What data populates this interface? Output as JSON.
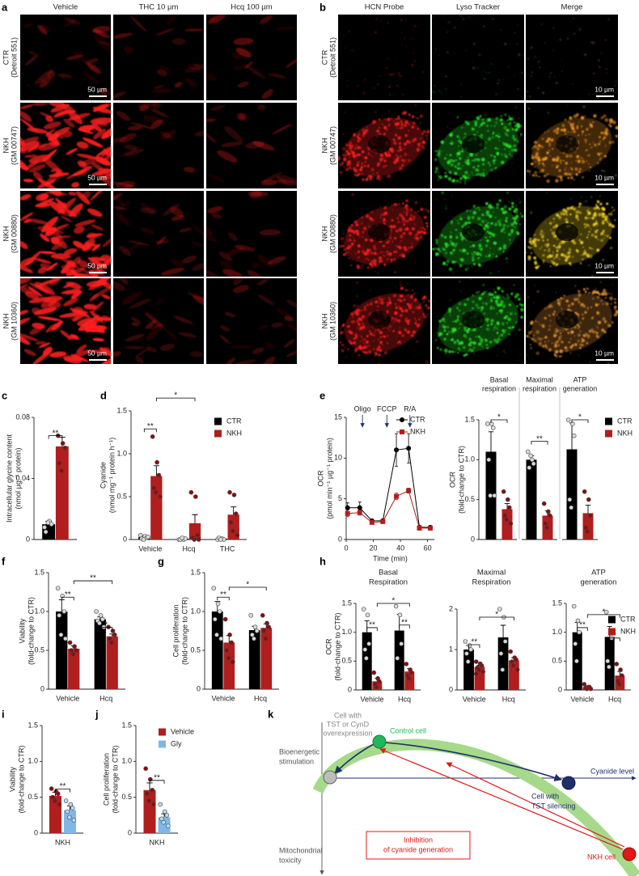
{
  "image_panels": {
    "a": {
      "panel": "a",
      "columns": [
        "Vehicle",
        "THC 10 µm",
        "Hcq 100 µm"
      ],
      "rows": [
        [
          "CTR",
          "(Detroit 551)"
        ],
        [
          "NKH",
          "(GM 00747)"
        ],
        [
          "NKH",
          "(GM 00880)"
        ],
        [
          "NKH",
          "(GM 10360)"
        ]
      ],
      "scale_bar": "50 µm"
    },
    "b": {
      "panel": "b",
      "columns": [
        "HCN Probe",
        "Lyso Tracker",
        "Merge"
      ],
      "rows": [
        [
          "CTR",
          "(Detroit 551)"
        ],
        [
          "NKH",
          "(GM 00747)"
        ],
        [
          "NKH",
          "(GM 00880)"
        ],
        [
          "NKH",
          "(GM 10360)"
        ]
      ],
      "scale_bar": "10 µm"
    }
  },
  "chart_data": [
    {
      "type": "bar",
      "panel": "c",
      "ylabel": [
        "Intracellular glycine content",
        "(nmol µg⁻¹ protein)"
      ],
      "categories": [
        null
      ],
      "ylim": [
        0,
        0.08
      ],
      "yticks": [
        0,
        0.04,
        0.08
      ],
      "series": [
        {
          "color": "#000000",
          "point_color": "#d9d9d9",
          "values": [
            0.01
          ],
          "errors": [
            0.002
          ],
          "points": [
            [
              0.008,
              0.012,
              0.01,
              0.005,
              0.011
            ]
          ]
        },
        {
          "color": "#b01e1e",
          "point_color": "#8b0d0d",
          "values": [
            0.061
          ],
          "errors": [
            0.006
          ],
          "points": [
            [
              0.068,
              0.063,
              0.06,
              0.05,
              0.045
            ]
          ]
        }
      ],
      "annotations": [
        "**"
      ]
    },
    {
      "type": "bar",
      "panel": "d",
      "ylabel": [
        "Cyanide",
        "(nmol mg⁻¹ protein h⁻¹)"
      ],
      "categories": [
        "Vehicle",
        "Hcq",
        "THC"
      ],
      "ylim": [
        0,
        1.5
      ],
      "yticks": [
        0,
        0.5,
        {
          "value": 1,
          "label": "1.0"
        },
        1.5
      ],
      "legend": "upper right",
      "series": [
        {
          "name": "CTR",
          "color": "#000000",
          "point_color": "#d9d9d9",
          "values": [
            0.03,
            0.01,
            0.01
          ],
          "errors": [
            0.01,
            0.01,
            0.01
          ],
          "points": [
            [
              0.05,
              0.04,
              0.02,
              0.01,
              0,
              0.03
            ],
            [
              0,
              0,
              0.01,
              0,
              0.02
            ],
            [
              0,
              0.01,
              0,
              0.02,
              0
            ]
          ]
        },
        {
          "name": "NKH",
          "color": "#b01e1e",
          "point_color": "#8b0d0d",
          "values": [
            0.74,
            0.19,
            0.29
          ],
          "errors": [
            0.12,
            0.1,
            0.09
          ],
          "points": [
            [
              1.2,
              0.9,
              0.75,
              0.6,
              0.55,
              0.5
            ],
            [
              0.55,
              0.5,
              0.05,
              0.02,
              0,
              0
            ],
            [
              0.55,
              0.52,
              0.3,
              0.2,
              0.1,
              0.05
            ]
          ]
        }
      ],
      "annotations": [
        "**",
        "*"
      ]
    },
    {
      "type": "line",
      "panel": "e",
      "ylabel": [
        "OCR",
        "(pmol min⁻¹ µg⁻¹ protein)"
      ],
      "xlabel": "Time (min)",
      "x": [
        1,
        10,
        19,
        27,
        37,
        46,
        54,
        62
      ],
      "xlim": [
        0,
        65
      ],
      "xticks": [
        0,
        20,
        40,
        60
      ],
      "ylim": [
        0,
        15
      ],
      "yticks": [
        0,
        5,
        10,
        15
      ],
      "legend": "upper right",
      "series": [
        {
          "name": "CTR",
          "color": "#000000",
          "marker": "circle",
          "values": [
            3.9,
            3.9,
            2.3,
            2.3,
            11,
            11.2,
            1.5,
            1.5
          ],
          "errors": [
            0.6,
            0.7,
            0.2,
            0.2,
            2,
            1.8,
            0.2,
            0.2
          ]
        },
        {
          "name": "NKH",
          "color": "#b01e1e",
          "marker": "square",
          "values": [
            3.2,
            3.3,
            2.1,
            2.2,
            5.3,
            6,
            1.4,
            1.4
          ],
          "errors": [
            0.4,
            0.3,
            0.2,
            0.2,
            0.4,
            0.3,
            0.1,
            0.1
          ]
        }
      ],
      "annotations": [
        {
          "text": "Oligo",
          "x": 12
        },
        {
          "text": "FCCP",
          "x": 30
        },
        {
          "text": "R/A",
          "x": 47
        }
      ]
    },
    {
      "type": "bar",
      "ylabel": [
        "OCR",
        "(fold-change to CTR)"
      ],
      "categories": [
        [
          "Basal",
          "respiration"
        ],
        [
          "Maximal",
          "respiration"
        ],
        [
          "ATP",
          "generation"
        ]
      ],
      "ylim": [
        0,
        1.5
      ],
      "yticks": [
        0,
        0.5,
        {
          "value": 1,
          "label": "1.0"
        },
        1.5
      ],
      "legend": "upper right",
      "series": [
        {
          "name": "CTR",
          "color": "#000000",
          "point_color": "#d9d9d9",
          "values": [
            1.1,
            1,
            1.13
          ],
          "errors": [
            0.25,
            0.05,
            0.33
          ],
          "points": [
            [
              1.45,
              1.45,
              1.4,
              1,
              0.55,
              0.55
            ],
            [
              1.1,
              1,
              0.95,
              0.9,
              1.05
            ],
            [
              1.5,
              1.45,
              1.3,
              0.5,
              0.4
            ]
          ]
        },
        {
          "name": "NKH",
          "color": "#b01e1e",
          "point_color": "#8b0d0d",
          "values": [
            0.38,
            0.3,
            0.33
          ],
          "errors": [
            0.07,
            0.06,
            0.1
          ],
          "points": [
            [
              0.6,
              0.5,
              0.4,
              0.3,
              0.25,
              0.2
            ],
            [
              0.45,
              0.35,
              0.3,
              0.2,
              0.15
            ],
            [
              0.6,
              0.5,
              0.3,
              0.15,
              0.1
            ]
          ]
        }
      ],
      "annotations": [
        "*",
        "**",
        "*"
      ]
    },
    {
      "type": "bar",
      "panel": "f",
      "ylabel": [
        "Viability",
        "(fold-change to CTR)"
      ],
      "categories": [
        "Vehicle",
        "Hcq"
      ],
      "ylim": [
        0,
        1.5
      ],
      "yticks": [
        0,
        0.5,
        {
          "value": 1,
          "label": "1.0"
        },
        1.5
      ],
      "series": [
        {
          "color": "#000000",
          "point_color": "#d9d9d9",
          "values": [
            1,
            0.9
          ],
          "errors": [
            0.15,
            0.03
          ],
          "points": [
            [
              1.3,
              1.2,
              1,
              0.95,
              0.7,
              0.65
            ],
            [
              1,
              0.95,
              0.9,
              0.88,
              0.85,
              0.8
            ]
          ]
        },
        {
          "color": "#b01e1e",
          "point_color": "#8b0d0d",
          "values": [
            0.52,
            0.68
          ],
          "errors": [
            0.04,
            0.03
          ],
          "points": [
            [
              0.6,
              0.55,
              0.5,
              0.5,
              0.45
            ],
            [
              0.8,
              0.75,
              0.7,
              0.65,
              0.6
            ]
          ]
        }
      ],
      "annotations": [
        "**",
        "*",
        "**"
      ]
    },
    {
      "type": "bar",
      "panel": "g",
      "ylabel": [
        "Cell proliferation",
        "(fold-change to CTR)"
      ],
      "categories": [
        "Vehicle",
        "Hcq"
      ],
      "ylim": [
        0,
        1.5
      ],
      "yticks": [
        0,
        0.5,
        {
          "value": 1,
          "label": "1.0"
        },
        1.5
      ],
      "series": [
        {
          "color": "#000000",
          "point_color": "#d9d9d9",
          "values": [
            1,
            0.76
          ],
          "errors": [
            0.13,
            0.05
          ],
          "points": [
            [
              1.3,
              1.1,
              1,
              0.9,
              0.7,
              0.65
            ],
            [
              0.95,
              0.8,
              0.75,
              0.7,
              0.65
            ]
          ]
        },
        {
          "color": "#b01e1e",
          "point_color": "#8b0d0d",
          "values": [
            0.6,
            0.79
          ],
          "errors": [
            0.09,
            0.05
          ],
          "points": [
            [
              0.9,
              0.7,
              0.6,
              0.5,
              0.4,
              0.35
            ],
            [
              0.95,
              0.85,
              0.8,
              0.75,
              0.65
            ]
          ]
        }
      ],
      "annotations": [
        "**",
        "*"
      ]
    },
    {
      "type": "bar",
      "panel": "h",
      "title": [
        "Basal",
        "Respiration"
      ],
      "ylabel": [
        "OCR",
        "(fold-change to CTR)"
      ],
      "categories": [
        "Vehicle",
        "Hcq"
      ],
      "ylim": [
        0,
        1.5
      ],
      "yticks": [
        0,
        0.5,
        {
          "value": 1,
          "label": "1.0"
        },
        1.5
      ],
      "series": [
        {
          "color": "#000000",
          "point_color": "#d9d9d9",
          "values": [
            1,
            1.03
          ],
          "errors": [
            0.2,
            0.28
          ],
          "points": [
            [
              1.4,
              1.3,
              0.8,
              0.7,
              0.55
            ],
            [
              1.45,
              1.3,
              0.8,
              0.55
            ]
          ]
        },
        {
          "color": "#b01e1e",
          "point_color": "#8b0d0d",
          "values": [
            0.15,
            0.32
          ],
          "errors": [
            0.05,
            0.05
          ],
          "points": [
            [
              0.3,
              0.2,
              0.15,
              0.1,
              0.05
            ],
            [
              0.45,
              0.35,
              0.3,
              0.25,
              0.2
            ]
          ]
        }
      ],
      "annotations": [
        "**",
        "**",
        "*"
      ]
    },
    {
      "type": "bar",
      "title": [
        "Maximal",
        "Respiration"
      ],
      "categories": [
        "Vehicle",
        "Hcq"
      ],
      "ylim": [
        0,
        2
      ],
      "yticks": [
        0,
        1,
        2
      ],
      "series": [
        {
          "color": "#000000",
          "point_color": "#d9d9d9",
          "values": [
            1,
            1.3
          ],
          "errors": [
            0.1,
            0.3
          ],
          "points": [
            [
              1.2,
              1.1,
              1,
              0.9,
              0.7
            ],
            [
              2,
              1.8,
              1.2,
              0.9,
              0.5
            ]
          ]
        },
        {
          "color": "#b01e1e",
          "point_color": "#8b0d0d",
          "values": [
            0.57,
            0.73
          ],
          "errors": [
            0.04,
            0.07
          ],
          "points": [
            [
              0.7,
              0.65,
              0.6,
              0.55,
              0.5,
              0.45,
              0.4
            ],
            [
              0.95,
              0.8,
              0.75,
              0.7,
              0.6,
              0.5
            ]
          ]
        }
      ],
      "annotations": [
        "**",
        "*"
      ]
    },
    {
      "type": "bar",
      "title": [
        "ATP",
        "generation"
      ],
      "legend": "upper right",
      "categories": [
        "Vehicle",
        "Hcq"
      ],
      "ylim": [
        0,
        1.5
      ],
      "yticks": [
        0,
        0.5,
        {
          "value": 1,
          "label": "1.0"
        },
        1.5
      ],
      "series": [
        {
          "name": "CTR",
          "color": "#000000",
          "point_color": "#d9d9d9",
          "values": [
            1,
            0.92
          ],
          "errors": [
            0.17,
            0.18
          ],
          "points": [
            [
              1.45,
              1.2,
              1,
              0.8,
              0.5
            ],
            [
              1.35,
              1.2,
              0.9,
              0.5,
              0.4
            ]
          ]
        },
        {
          "name": "NKH",
          "color": "#b01e1e",
          "point_color": "#8b0d0d",
          "values": [
            0.05,
            0.25
          ],
          "errors": [
            0.02,
            0.07
          ],
          "points": [
            [
              0.1,
              0.05,
              0.05,
              0.03,
              0.02,
              0.02
            ],
            [
              0.45,
              0.35,
              0.25,
              0.15,
              0.1
            ]
          ]
        }
      ],
      "annotations": [
        "**",
        "*",
        "*"
      ]
    },
    {
      "type": "bar",
      "panel": "i",
      "ylabel": [
        "Viability",
        "(fold-change to CTR)"
      ],
      "categories": [
        "NKH"
      ],
      "ylim": [
        0,
        1.5
      ],
      "yticks": [
        0,
        0.5,
        {
          "value": 1,
          "label": "1.0"
        },
        1.5
      ],
      "series": [
        {
          "color": "#b01e1e",
          "point_color": "#8b0d0d",
          "values": [
            0.52
          ],
          "errors": [
            0.05
          ],
          "points": [
            [
              0.62,
              0.58,
              0.55,
              0.5,
              0.45,
              0.4
            ]
          ]
        },
        {
          "color": "#7fb8e6",
          "point_color": "#b5dcf7",
          "values": [
            0.32
          ],
          "errors": [
            0.06
          ],
          "points": [
            [
              0.45,
              0.4,
              0.35,
              0.3,
              0.22,
              0.18
            ]
          ]
        }
      ],
      "annotations": [
        "**"
      ]
    },
    {
      "type": "bar",
      "panel": "j",
      "ylabel": [
        "Cell proliferation",
        "(fold-change to CTR)"
      ],
      "categories": [
        "NKH"
      ],
      "ylim": [
        0,
        1.5
      ],
      "yticks": [
        0,
        0.5,
        {
          "value": 1,
          "label": "1.0"
        },
        1.5
      ],
      "legend": "upper right",
      "series": [
        {
          "name": "Vehicle",
          "color": "#b01e1e",
          "point_color": "#8b0d0d",
          "values": [
            0.6
          ],
          "errors": [
            0.1
          ],
          "points": [
            [
              0.9,
              0.75,
              0.6,
              0.55,
              0.45,
              0.4
            ]
          ]
        },
        {
          "name": "Gly",
          "color": "#7fb8e6",
          "point_color": "#b5dcf7",
          "values": [
            0.22
          ],
          "errors": [
            0.05
          ],
          "points": [
            [
              0.4,
              0.3,
              0.25,
              0.2,
              0.15,
              0.1
            ]
          ]
        }
      ],
      "annotations": [
        "**"
      ]
    }
  ],
  "diagram": {
    "panel": "k",
    "y_top": [
      "Bioenergetic",
      "stimulation"
    ],
    "y_bottom": [
      "Mitochondrial",
      "toxicity"
    ],
    "x_axis": "Cyanide level",
    "overexpression": [
      "Cell with",
      "TST or CynD",
      "overexpression"
    ],
    "control": "Control cell",
    "silencing": [
      "Cell with",
      "TST silencing"
    ],
    "inhibition": [
      "Inhibition",
      "of cyanide generation"
    ],
    "nkh": "NKH cell"
  }
}
